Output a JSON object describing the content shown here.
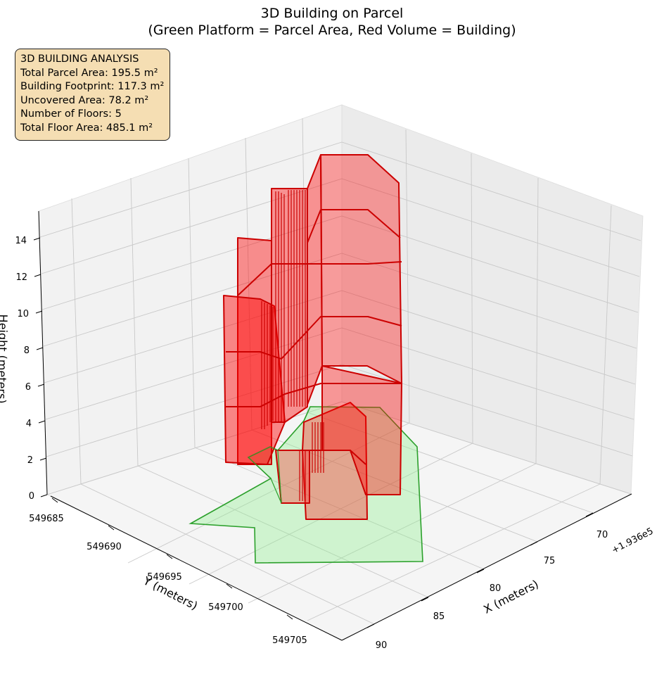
{
  "title_line1": "3D Building on Parcel",
  "title_line2": "(Green Platform = Parcel Area, Red Volume = Building)",
  "info": {
    "heading": "3D BUILDING ANALYSIS",
    "lines": [
      "Total Parcel Area: 195.5 m²",
      "Building Footprint: 117.3 m²",
      "Uncovered Area: 78.2 m²",
      "Number of Floors: 5",
      "Total Floor Area: 485.1 m²"
    ]
  },
  "colors": {
    "parcel_fill": "#90ee90",
    "parcel_edge": "#2ca02c",
    "building_fill": "#ff0000",
    "building_edge": "#cc0000",
    "pane": "#f2f2f2",
    "grid": "#c8c8c8",
    "infobox_bg": "#f5deb3"
  },
  "chart_data": {
    "type": "3d-polygon",
    "xlabel": "X (meters)",
    "ylabel": "Y (meters)",
    "zlabel": "Height (meters)",
    "x_offset_label": "+1.936e5",
    "x_ticks": [
      "70",
      "75",
      "80",
      "85",
      "90"
    ],
    "y_ticks": [
      "549685",
      "549690",
      "549695",
      "549700",
      "549705"
    ],
    "z_ticks": [
      "0",
      "2",
      "4",
      "6",
      "8",
      "10",
      "12",
      "14"
    ],
    "floors": 5,
    "floor_height_m": 3,
    "building_height_m": 15,
    "parcel_area_m2": 195.5,
    "building_footprint_m2": 117.3,
    "uncovered_area_m2": 78.2,
    "total_floor_area_m2": 485.1
  }
}
